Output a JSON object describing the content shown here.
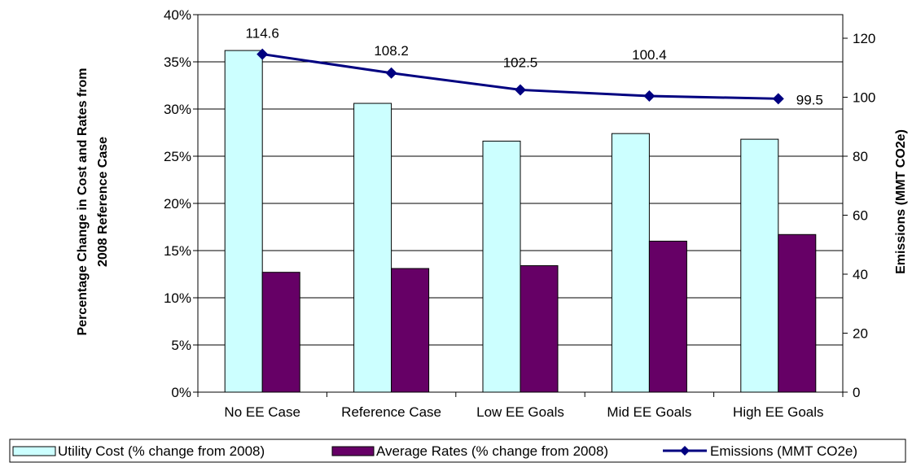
{
  "chart_data": {
    "type": "bar",
    "categories": [
      "No EE Case",
      "Reference Case",
      "Low EE Goals",
      "Mid EE Goals",
      "High EE Goals"
    ],
    "series": [
      {
        "name": "Utility Cost (% change from 2008)",
        "type": "bar",
        "axis": "left",
        "values": [
          36.2,
          30.6,
          26.6,
          27.4,
          26.8
        ],
        "color": "#CCFFFF"
      },
      {
        "name": "Average Rates (% change from 2008)",
        "type": "bar",
        "axis": "left",
        "values": [
          12.7,
          13.1,
          13.4,
          16.0,
          16.7
        ],
        "color": "#660066"
      },
      {
        "name": "Emissions (MMT CO2e)",
        "type": "line",
        "axis": "right",
        "values": [
          114.6,
          108.2,
          102.5,
          100.4,
          99.5
        ],
        "color": "#000080",
        "marker": "diamond"
      }
    ],
    "data_labels": [
      "114.6",
      "108.2",
      "102.5",
      "100.4",
      "99.5"
    ],
    "ylabel": "Percentage Change in Cost and Rates from 2008 Reference Case",
    "ylabel_lines": [
      "Percentage Change in Cost and Rates from",
      "2008 Reference Case"
    ],
    "y2label": "Emissions (MMT CO2e)",
    "ylim": [
      0,
      40
    ],
    "y2lim": [
      0,
      128
    ],
    "yticks": [
      "0%",
      "5%",
      "10%",
      "15%",
      "20%",
      "25%",
      "30%",
      "35%",
      "40%"
    ],
    "y2ticks": [
      "0",
      "20",
      "40",
      "60",
      "80",
      "100",
      "120"
    ],
    "grid": true,
    "legend_position": "bottom"
  }
}
